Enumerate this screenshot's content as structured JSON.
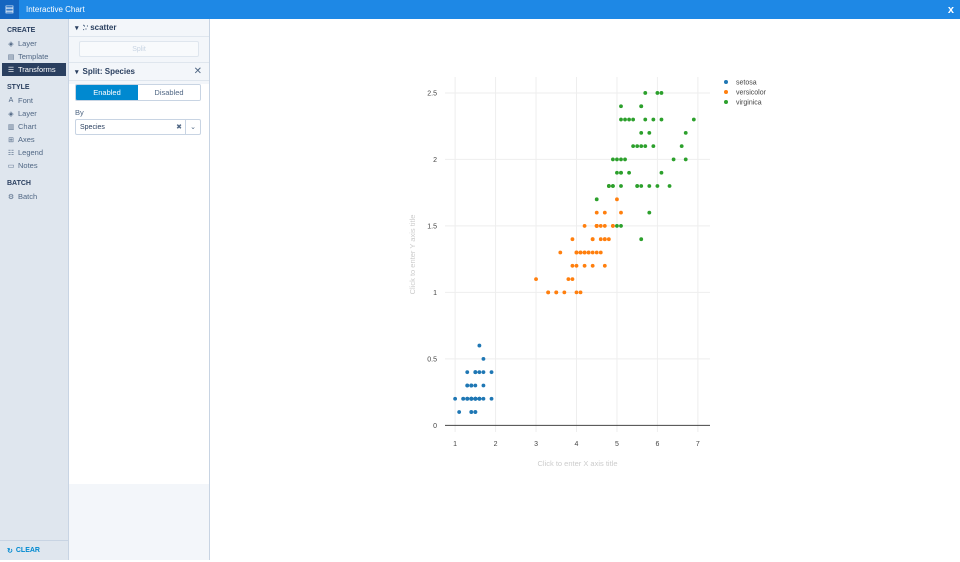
{
  "app": {
    "title": "Interactive Chart",
    "close_glyph": "x"
  },
  "nav": {
    "create_header": "CREATE",
    "create_items": [
      {
        "label": "Layer",
        "icon": "layers-icon"
      },
      {
        "label": "Template",
        "icon": "template-icon"
      },
      {
        "label": "Transforms",
        "icon": "transforms-icon",
        "active": true
      }
    ],
    "style_header": "STYLE",
    "style_items": [
      {
        "label": "Font",
        "icon": "font-icon"
      },
      {
        "label": "Layer",
        "icon": "layers-icon"
      },
      {
        "label": "Chart",
        "icon": "chart-icon"
      },
      {
        "label": "Axes",
        "icon": "axes-icon"
      },
      {
        "label": "Legend",
        "icon": "legend-icon"
      },
      {
        "label": "Notes",
        "icon": "notes-icon"
      }
    ],
    "batch_header": "BATCH",
    "batch_items": [
      {
        "label": "Batch",
        "icon": "batch-icon"
      }
    ],
    "clear_label": "CLEAR"
  },
  "panel": {
    "trace_label": "scatter",
    "split_button_label": "Split",
    "transform_title": "Split: Species",
    "toggle_enabled": "Enabled",
    "toggle_disabled": "Disabled",
    "by_label": "By",
    "by_value": "Species"
  },
  "chart_data": {
    "type": "scatter",
    "xlabel_placeholder": "Click to enter X axis title",
    "ylabel_placeholder": "Click to enter Y axis title",
    "xticks": [
      1,
      2,
      3,
      4,
      5,
      6,
      7
    ],
    "yticks": [
      0,
      0.5,
      1,
      1.5,
      2,
      2.5
    ],
    "xlim": [
      0.75,
      7.3
    ],
    "ylim": [
      -0.05,
      2.62
    ],
    "legend_position": "top-right",
    "series": [
      {
        "name": "setosa",
        "color": "#1f77b4",
        "x": [
          1.4,
          1.4,
          1.3,
          1.5,
          1.4,
          1.7,
          1.4,
          1.5,
          1.4,
          1.5,
          1.5,
          1.6,
          1.4,
          1.1,
          1.2,
          1.5,
          1.3,
          1.4,
          1.7,
          1.5,
          1.7,
          1.5,
          1.0,
          1.7,
          1.9,
          1.6,
          1.6,
          1.5,
          1.4,
          1.6,
          1.6,
          1.5,
          1.5,
          1.4,
          1.5,
          1.2,
          1.3,
          1.4,
          1.3,
          1.5,
          1.3,
          1.3,
          1.3,
          1.6,
          1.9,
          1.4,
          1.6,
          1.4,
          1.5,
          1.4
        ],
        "y": [
          0.2,
          0.2,
          0.2,
          0.2,
          0.2,
          0.4,
          0.3,
          0.2,
          0.2,
          0.1,
          0.2,
          0.2,
          0.1,
          0.1,
          0.2,
          0.4,
          0.4,
          0.3,
          0.3,
          0.3,
          0.2,
          0.4,
          0.2,
          0.5,
          0.2,
          0.2,
          0.4,
          0.2,
          0.2,
          0.2,
          0.2,
          0.4,
          0.1,
          0.2,
          0.2,
          0.2,
          0.2,
          0.1,
          0.2,
          0.2,
          0.3,
          0.3,
          0.2,
          0.6,
          0.4,
          0.3,
          0.2,
          0.2,
          0.2,
          0.2
        ]
      },
      {
        "name": "versicolor",
        "color": "#ff7f0e",
        "x": [
          4.7,
          4.5,
          4.9,
          4.0,
          4.6,
          4.5,
          4.7,
          3.3,
          4.6,
          3.9,
          3.5,
          4.2,
          4.0,
          4.7,
          3.6,
          4.4,
          4.5,
          4.1,
          4.5,
          3.9,
          4.8,
          4.0,
          4.9,
          4.7,
          4.3,
          4.4,
          4.8,
          5.0,
          4.5,
          3.5,
          3.8,
          3.7,
          3.9,
          5.1,
          4.5,
          4.5,
          4.7,
          4.4,
          4.1,
          4.0,
          4.4,
          4.6,
          4.0,
          3.3,
          4.2,
          4.2,
          4.2,
          4.3,
          3.0,
          4.1
        ],
        "y": [
          1.4,
          1.5,
          1.5,
          1.3,
          1.5,
          1.3,
          1.6,
          1.0,
          1.3,
          1.4,
          1.0,
          1.5,
          1.0,
          1.4,
          1.3,
          1.4,
          1.5,
          1.0,
          1.5,
          1.1,
          1.8,
          1.3,
          1.5,
          1.2,
          1.3,
          1.4,
          1.4,
          1.7,
          1.5,
          1.0,
          1.1,
          1.0,
          1.2,
          1.6,
          1.5,
          1.6,
          1.5,
          1.3,
          1.3,
          1.3,
          1.2,
          1.4,
          1.2,
          1.0,
          1.3,
          1.2,
          1.3,
          1.3,
          1.1,
          1.3
        ]
      },
      {
        "name": "virginica",
        "color": "#2ca02c",
        "x": [
          6.0,
          5.1,
          5.9,
          5.6,
          5.8,
          6.6,
          4.5,
          6.3,
          5.8,
          6.1,
          5.1,
          5.3,
          5.5,
          5.0,
          5.1,
          5.3,
          5.5,
          6.7,
          6.9,
          5.0,
          5.7,
          4.9,
          6.7,
          4.9,
          5.7,
          6.0,
          4.8,
          4.9,
          5.6,
          5.8,
          6.1,
          6.4,
          5.6,
          5.1,
          5.6,
          6.1,
          5.6,
          5.5,
          4.8,
          5.4,
          5.6,
          5.1,
          5.1,
          5.9,
          5.7,
          5.2,
          5.0,
          5.2,
          5.4,
          5.1
        ],
        "y": [
          2.5,
          1.9,
          2.1,
          1.8,
          2.2,
          2.1,
          1.7,
          1.8,
          1.8,
          2.5,
          2.0,
          1.9,
          2.1,
          2.0,
          2.4,
          2.3,
          1.8,
          2.2,
          2.3,
          1.5,
          2.3,
          2.0,
          2.0,
          1.8,
          2.1,
          1.8,
          1.8,
          1.8,
          2.1,
          1.6,
          1.9,
          2.0,
          2.2,
          1.5,
          1.4,
          2.3,
          2.4,
          1.8,
          1.8,
          2.1,
          2.4,
          2.3,
          1.9,
          2.3,
          2.5,
          2.3,
          1.9,
          2.0,
          2.3,
          1.8
        ]
      }
    ]
  }
}
